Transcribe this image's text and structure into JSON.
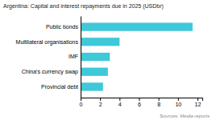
{
  "chart_data": {
    "type": "bar",
    "orientation": "horizontal",
    "title": "Argentina: Capital and interest repayments due in 2025 (USDbr)",
    "categories": [
      "Provincial debt",
      "China's currency swap",
      "IMF",
      "Multilateral organisations",
      "Public bonds"
    ],
    "values": [
      2.3,
      2.8,
      3.0,
      4.0,
      11.5
    ],
    "color": "#3ec8d8",
    "xlim": [
      0,
      12.5
    ],
    "xticks": [
      0,
      2,
      4,
      6,
      8,
      10,
      12
    ],
    "annotations": [
      "Sources: Media reports"
    ],
    "grid": false
  }
}
